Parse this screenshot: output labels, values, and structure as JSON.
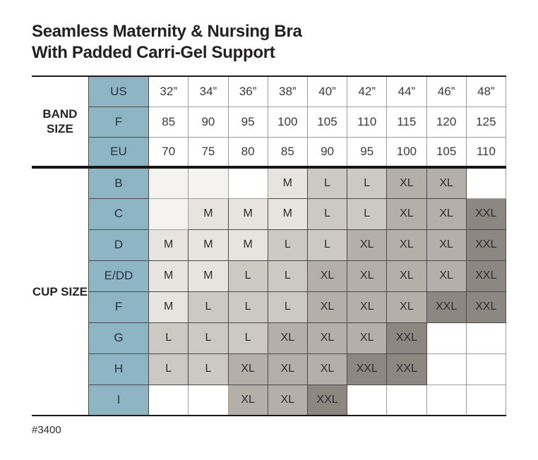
{
  "title": {
    "line1": "Seamless Maternity & Nursing Bra",
    "line2": "With Padded Carri-Gel Support"
  },
  "footer": {
    "product_number": "#3400"
  },
  "colors": {
    "header_blue": "#8db5c4",
    "cell_m": "#e7e4e0",
    "cell_l": "#ccc8c2",
    "cell_xl": "#b4b0a9",
    "cell_xxl": "#8c8781",
    "cell_empty_tint": "#f5f3ef",
    "grid_line": "#4a4a4a",
    "grid_line_light": "#9d9d9d",
    "frame_line": "#161616"
  },
  "table": {
    "band": {
      "label": "BAND SIZE",
      "rows": [
        {
          "header": "US",
          "values": [
            "32”",
            "34”",
            "36”",
            "38”",
            "40”",
            "42”",
            "44”",
            "46”",
            "48”"
          ]
        },
        {
          "header": "F",
          "values": [
            "85",
            "90",
            "95",
            "100",
            "105",
            "110",
            "115",
            "120",
            "125"
          ]
        },
        {
          "header": "EU",
          "values": [
            "70",
            "75",
            "80",
            "85",
            "90",
            "95",
            "100",
            "105",
            "110"
          ]
        }
      ]
    },
    "cup": {
      "label": "CUP SIZE",
      "rows": [
        {
          "header": "B",
          "values": [
            "",
            "",
            "",
            "M",
            "L",
            "L",
            "XL",
            "XL",
            ""
          ],
          "tinted": [
            0,
            1
          ]
        },
        {
          "header": "C",
          "values": [
            "",
            "M",
            "M",
            "M",
            "L",
            "L",
            "XL",
            "XL",
            "XXL"
          ],
          "tinted": [
            0
          ]
        },
        {
          "header": "D",
          "values": [
            "M",
            "M",
            "M",
            "L",
            "L",
            "XL",
            "XL",
            "XL",
            "XXL"
          ],
          "tinted": []
        },
        {
          "header": "E/DD",
          "values": [
            "M",
            "M",
            "L",
            "L",
            "XL",
            "XL",
            "XL",
            "XL",
            "XXL"
          ],
          "tinted": []
        },
        {
          "header": "F",
          "values": [
            "M",
            "L",
            "L",
            "L",
            "XL",
            "XL",
            "XL",
            "XXL",
            "XXL"
          ],
          "tinted": []
        },
        {
          "header": "G",
          "values": [
            "L",
            "L",
            "L",
            "XL",
            "XL",
            "XL",
            "XXL",
            "",
            ""
          ],
          "tinted": []
        },
        {
          "header": "H",
          "values": [
            "L",
            "L",
            "XL",
            "XL",
            "XL",
            "XXL",
            "XXL",
            "",
            ""
          ],
          "tinted": []
        },
        {
          "header": "I",
          "values": [
            "",
            "",
            "XL",
            "XL",
            "XXL",
            "",
            "",
            "",
            ""
          ],
          "tinted": []
        }
      ]
    }
  }
}
